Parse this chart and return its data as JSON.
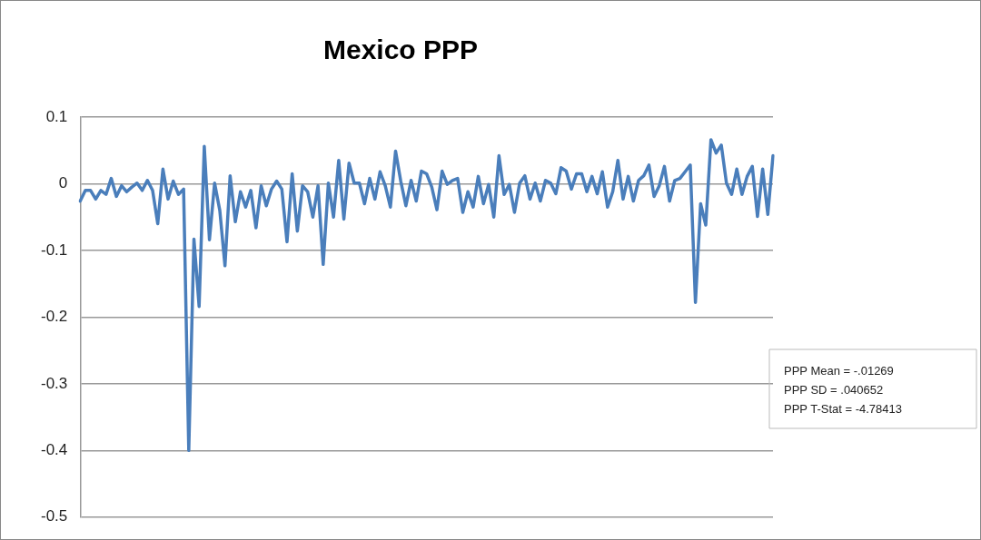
{
  "chart_data": {
    "type": "line",
    "title": "Mexico PPP",
    "categories": [
      null,
      null,
      null,
      null,
      null,
      null,
      null,
      null,
      null,
      null,
      null,
      null,
      null,
      null,
      null,
      null,
      null,
      null,
      null,
      null,
      null,
      null,
      null,
      null,
      null,
      null,
      null,
      null,
      null,
      null,
      null,
      null,
      null,
      null,
      null,
      null,
      null,
      null,
      null,
      null,
      null,
      null,
      null,
      null,
      null,
      null,
      null,
      null,
      null,
      null,
      null,
      null,
      null,
      null,
      null,
      null,
      null,
      null,
      null,
      null,
      null,
      null,
      null,
      null,
      null,
      null,
      null,
      null,
      null,
      null,
      null,
      null,
      null,
      null,
      null,
      null,
      null,
      null,
      null,
      null,
      null,
      null,
      null,
      null,
      null,
      null,
      null,
      null,
      null,
      null,
      null,
      null,
      null,
      null,
      null,
      null,
      null,
      null,
      null,
      null,
      null,
      null,
      null,
      null,
      null,
      null,
      null,
      null,
      null,
      null,
      null,
      null,
      null,
      null,
      null,
      null,
      null,
      null,
      null,
      null,
      null,
      null,
      null,
      null,
      null,
      null,
      null,
      null,
      null,
      null,
      null,
      null,
      null,
      null,
      null
    ],
    "series": [
      {
        "color": "#4a7ebb",
        "values": [
          -0.026,
          -0.01,
          -0.01,
          -0.023,
          -0.01,
          -0.016,
          0.008,
          -0.019,
          -0.003,
          -0.012,
          -0.005,
          0.001,
          -0.01,
          0.005,
          -0.01,
          -0.06,
          0.022,
          -0.023,
          0.004,
          -0.016,
          -0.008,
          -0.4,
          -0.083,
          -0.184,
          0.056,
          -0.084,
          0.001,
          -0.04,
          -0.123,
          0.012,
          -0.057,
          -0.012,
          -0.035,
          -0.01,
          -0.066,
          -0.003,
          -0.033,
          -0.008,
          0.004,
          -0.008,
          -0.087,
          0.015,
          -0.071,
          -0.003,
          -0.012,
          -0.05,
          -0.003,
          -0.121,
          0.001,
          -0.05,
          0.035,
          -0.053,
          0.031,
          0.001,
          0.001,
          -0.03,
          0.008,
          -0.023,
          0.018,
          -0.003,
          -0.035,
          0.049,
          0.004,
          -0.033,
          0.005,
          -0.026,
          0.019,
          0.015,
          -0.005,
          -0.039,
          0.019,
          -0.001,
          0.005,
          0.008,
          -0.043,
          -0.012,
          -0.035,
          0.011,
          -0.03,
          -0.001,
          -0.05,
          0.042,
          -0.016,
          -0.001,
          -0.043,
          0.001,
          0.012,
          -0.023,
          0.001,
          -0.026,
          0.005,
          0.001,
          -0.015,
          0.024,
          0.019,
          -0.008,
          0.015,
          0.015,
          -0.012,
          0.011,
          -0.015,
          0.018,
          -0.035,
          -0.012,
          0.035,
          -0.023,
          0.011,
          -0.026,
          0.005,
          0.012,
          0.028,
          -0.019,
          -0.003,
          0.026,
          -0.026,
          0.005,
          0.008,
          0.018,
          0.028,
          -0.178,
          -0.03,
          -0.062,
          0.066,
          0.046,
          0.058,
          0.001,
          -0.016,
          0.022,
          -0.016,
          0.011,
          0.026,
          -0.049,
          0.022,
          -0.046,
          0.042
        ]
      }
    ],
    "ylim": [
      -0.5,
      0.1
    ],
    "yticks": [
      -0.5,
      -0.4,
      -0.3,
      -0.2,
      -0.1,
      0,
      0.1
    ],
    "grid": "y",
    "tick_labels": "y",
    "legend": false,
    "marker": "none",
    "line_style": "solid",
    "annotations": [
      "PPP Mean = -.01269",
      "PPP SD = .040652",
      "PPP T-Stat = -4.78413"
    ]
  }
}
